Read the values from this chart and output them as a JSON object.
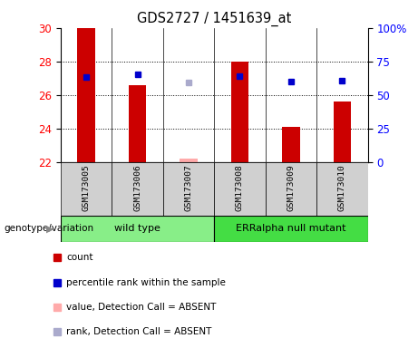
{
  "title": "GDS2727 / 1451639_at",
  "samples": [
    "GSM173005",
    "GSM173006",
    "GSM173007",
    "GSM173008",
    "GSM173009",
    "GSM173010"
  ],
  "ylim_left": [
    22,
    30
  ],
  "yticks_left": [
    22,
    24,
    26,
    28,
    30
  ],
  "ytick_labels_right": [
    "0",
    "25",
    "50",
    "75",
    "100%"
  ],
  "bar_values": [
    30.0,
    26.6,
    22.2,
    28.0,
    24.1,
    25.6
  ],
  "bar_absent": [
    false,
    false,
    true,
    false,
    false,
    false
  ],
  "bar_color_present": "#cc0000",
  "bar_color_absent": "#ffaaaa",
  "rank_values": [
    27.05,
    27.2,
    26.75,
    27.1,
    26.8,
    26.85
  ],
  "rank_absent": [
    false,
    false,
    true,
    false,
    false,
    false
  ],
  "rank_color_present": "#0000cc",
  "rank_color_absent": "#aaaacc",
  "rank_marker_size": 5,
  "ybase": 22,
  "groups": [
    {
      "label": "wild type",
      "samples": [
        0,
        1,
        2
      ],
      "color": "#88ee88"
    },
    {
      "label": "ERRalpha null mutant",
      "samples": [
        3,
        4,
        5
      ],
      "color": "#44dd44"
    }
  ],
  "group_row_label": "genotype/variation",
  "legend_items": [
    {
      "label": "count",
      "color": "#cc0000"
    },
    {
      "label": "percentile rank within the sample",
      "color": "#0000cc"
    },
    {
      "label": "value, Detection Call = ABSENT",
      "color": "#ffaaaa"
    },
    {
      "label": "rank, Detection Call = ABSENT",
      "color": "#aaaacc"
    }
  ],
  "dotted_gridlines": [
    24,
    26,
    28
  ],
  "fig_width": 4.61,
  "fig_height": 3.84,
  "dpi": 100
}
